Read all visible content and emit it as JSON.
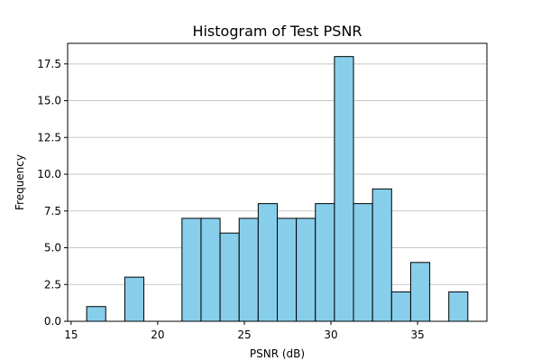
{
  "chart_data": {
    "type": "bar",
    "title": "Histogram of Test PSNR",
    "xlabel": "PSNR (dB)",
    "ylabel": "Frequency",
    "xlim": [
      14.8,
      39.0
    ],
    "ylim": [
      0,
      18.9
    ],
    "xticks": [
      15,
      20,
      25,
      30,
      35
    ],
    "yticks": [
      0.0,
      2.5,
      5.0,
      7.5,
      10.0,
      12.5,
      15.0,
      17.5
    ],
    "grid": "y",
    "bar_color": "#87CEEB",
    "edge_color": "#000000",
    "bin_edges": [
      15.9,
      17.0,
      18.1,
      19.2,
      20.3,
      21.4,
      22.5,
      23.6,
      24.7,
      25.8,
      26.9,
      28.0,
      29.1,
      30.2,
      31.3,
      32.4,
      33.5,
      34.6,
      35.7,
      36.8,
      37.9
    ],
    "values": [
      1,
      0,
      3,
      0,
      0,
      7,
      7,
      6,
      7,
      8,
      7,
      7,
      8,
      18,
      8,
      9,
      2,
      4,
      0,
      2
    ]
  }
}
